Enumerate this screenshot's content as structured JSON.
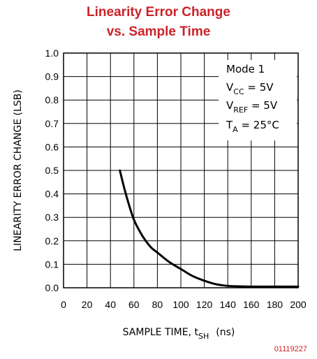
{
  "chart_data": {
    "type": "line",
    "title_line1": "Linearity Error Change",
    "title_line2": "vs. Sample Time",
    "ylabel": "LINEARITY ERROR CHANGE (LSB)",
    "xlabel_main": "SAMPLE TIME, t",
    "xlabel_sub": "SH",
    "xlabel_unit": "(ns)",
    "xlim": [
      0,
      200
    ],
    "ylim": [
      0,
      1.0
    ],
    "x_ticks": [
      "0",
      "20",
      "40",
      "60",
      "80",
      "100",
      "120",
      "140",
      "160",
      "180",
      "200"
    ],
    "y_ticks": [
      "0.0",
      "0.1",
      "0.2",
      "0.3",
      "0.4",
      "0.5",
      "0.6",
      "0.7",
      "0.8",
      "0.9",
      "1.0"
    ],
    "grid": true,
    "annotation": {
      "line1": "Mode 1",
      "vcc_main": "V",
      "vcc_sub": "CC",
      "vcc_val": " = 5V",
      "vref_main": "V",
      "vref_sub": "REF",
      "vref_val": " = 5V",
      "ta_main": "T",
      "ta_sub": "A",
      "ta_val": " = 25°C"
    },
    "series": [
      {
        "x": [
          48,
          52,
          56,
          60,
          65,
          70,
          75,
          80,
          90,
          100,
          110,
          120,
          130,
          140,
          150,
          160,
          170,
          180,
          190,
          200
        ],
        "y": [
          0.5,
          0.42,
          0.35,
          0.29,
          0.24,
          0.2,
          0.17,
          0.15,
          0.11,
          0.08,
          0.05,
          0.03,
          0.015,
          0.008,
          0.006,
          0.005,
          0.005,
          0.005,
          0.005,
          0.005
        ]
      }
    ],
    "figure_id": "01119227"
  }
}
